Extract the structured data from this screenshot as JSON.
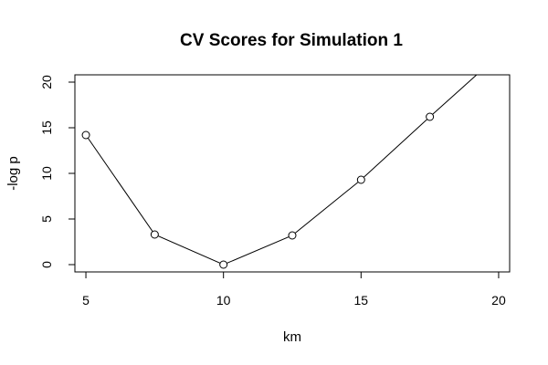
{
  "chart_data": {
    "type": "line",
    "title": "CV Scores for Simulation 1",
    "xlabel": "km",
    "ylabel": "-log p",
    "xlim": [
      4.6,
      20.4
    ],
    "ylim": [
      -0.8,
      20.8
    ],
    "xticks": [
      5,
      10,
      15,
      20
    ],
    "yticks": [
      0,
      5,
      10,
      15,
      20
    ],
    "grid": false,
    "legend": "none",
    "series": [
      {
        "x": [
          5,
          7.5,
          10,
          12.5,
          15,
          17.5,
          19.2
        ],
        "y": [
          14.2,
          3.3,
          0,
          3.2,
          9.3,
          16.2,
          20.8
        ],
        "markers": [
          true,
          true,
          true,
          true,
          true,
          true,
          false
        ]
      }
    ],
    "colors": {
      "line": "#000000",
      "axis": "#000000"
    }
  }
}
